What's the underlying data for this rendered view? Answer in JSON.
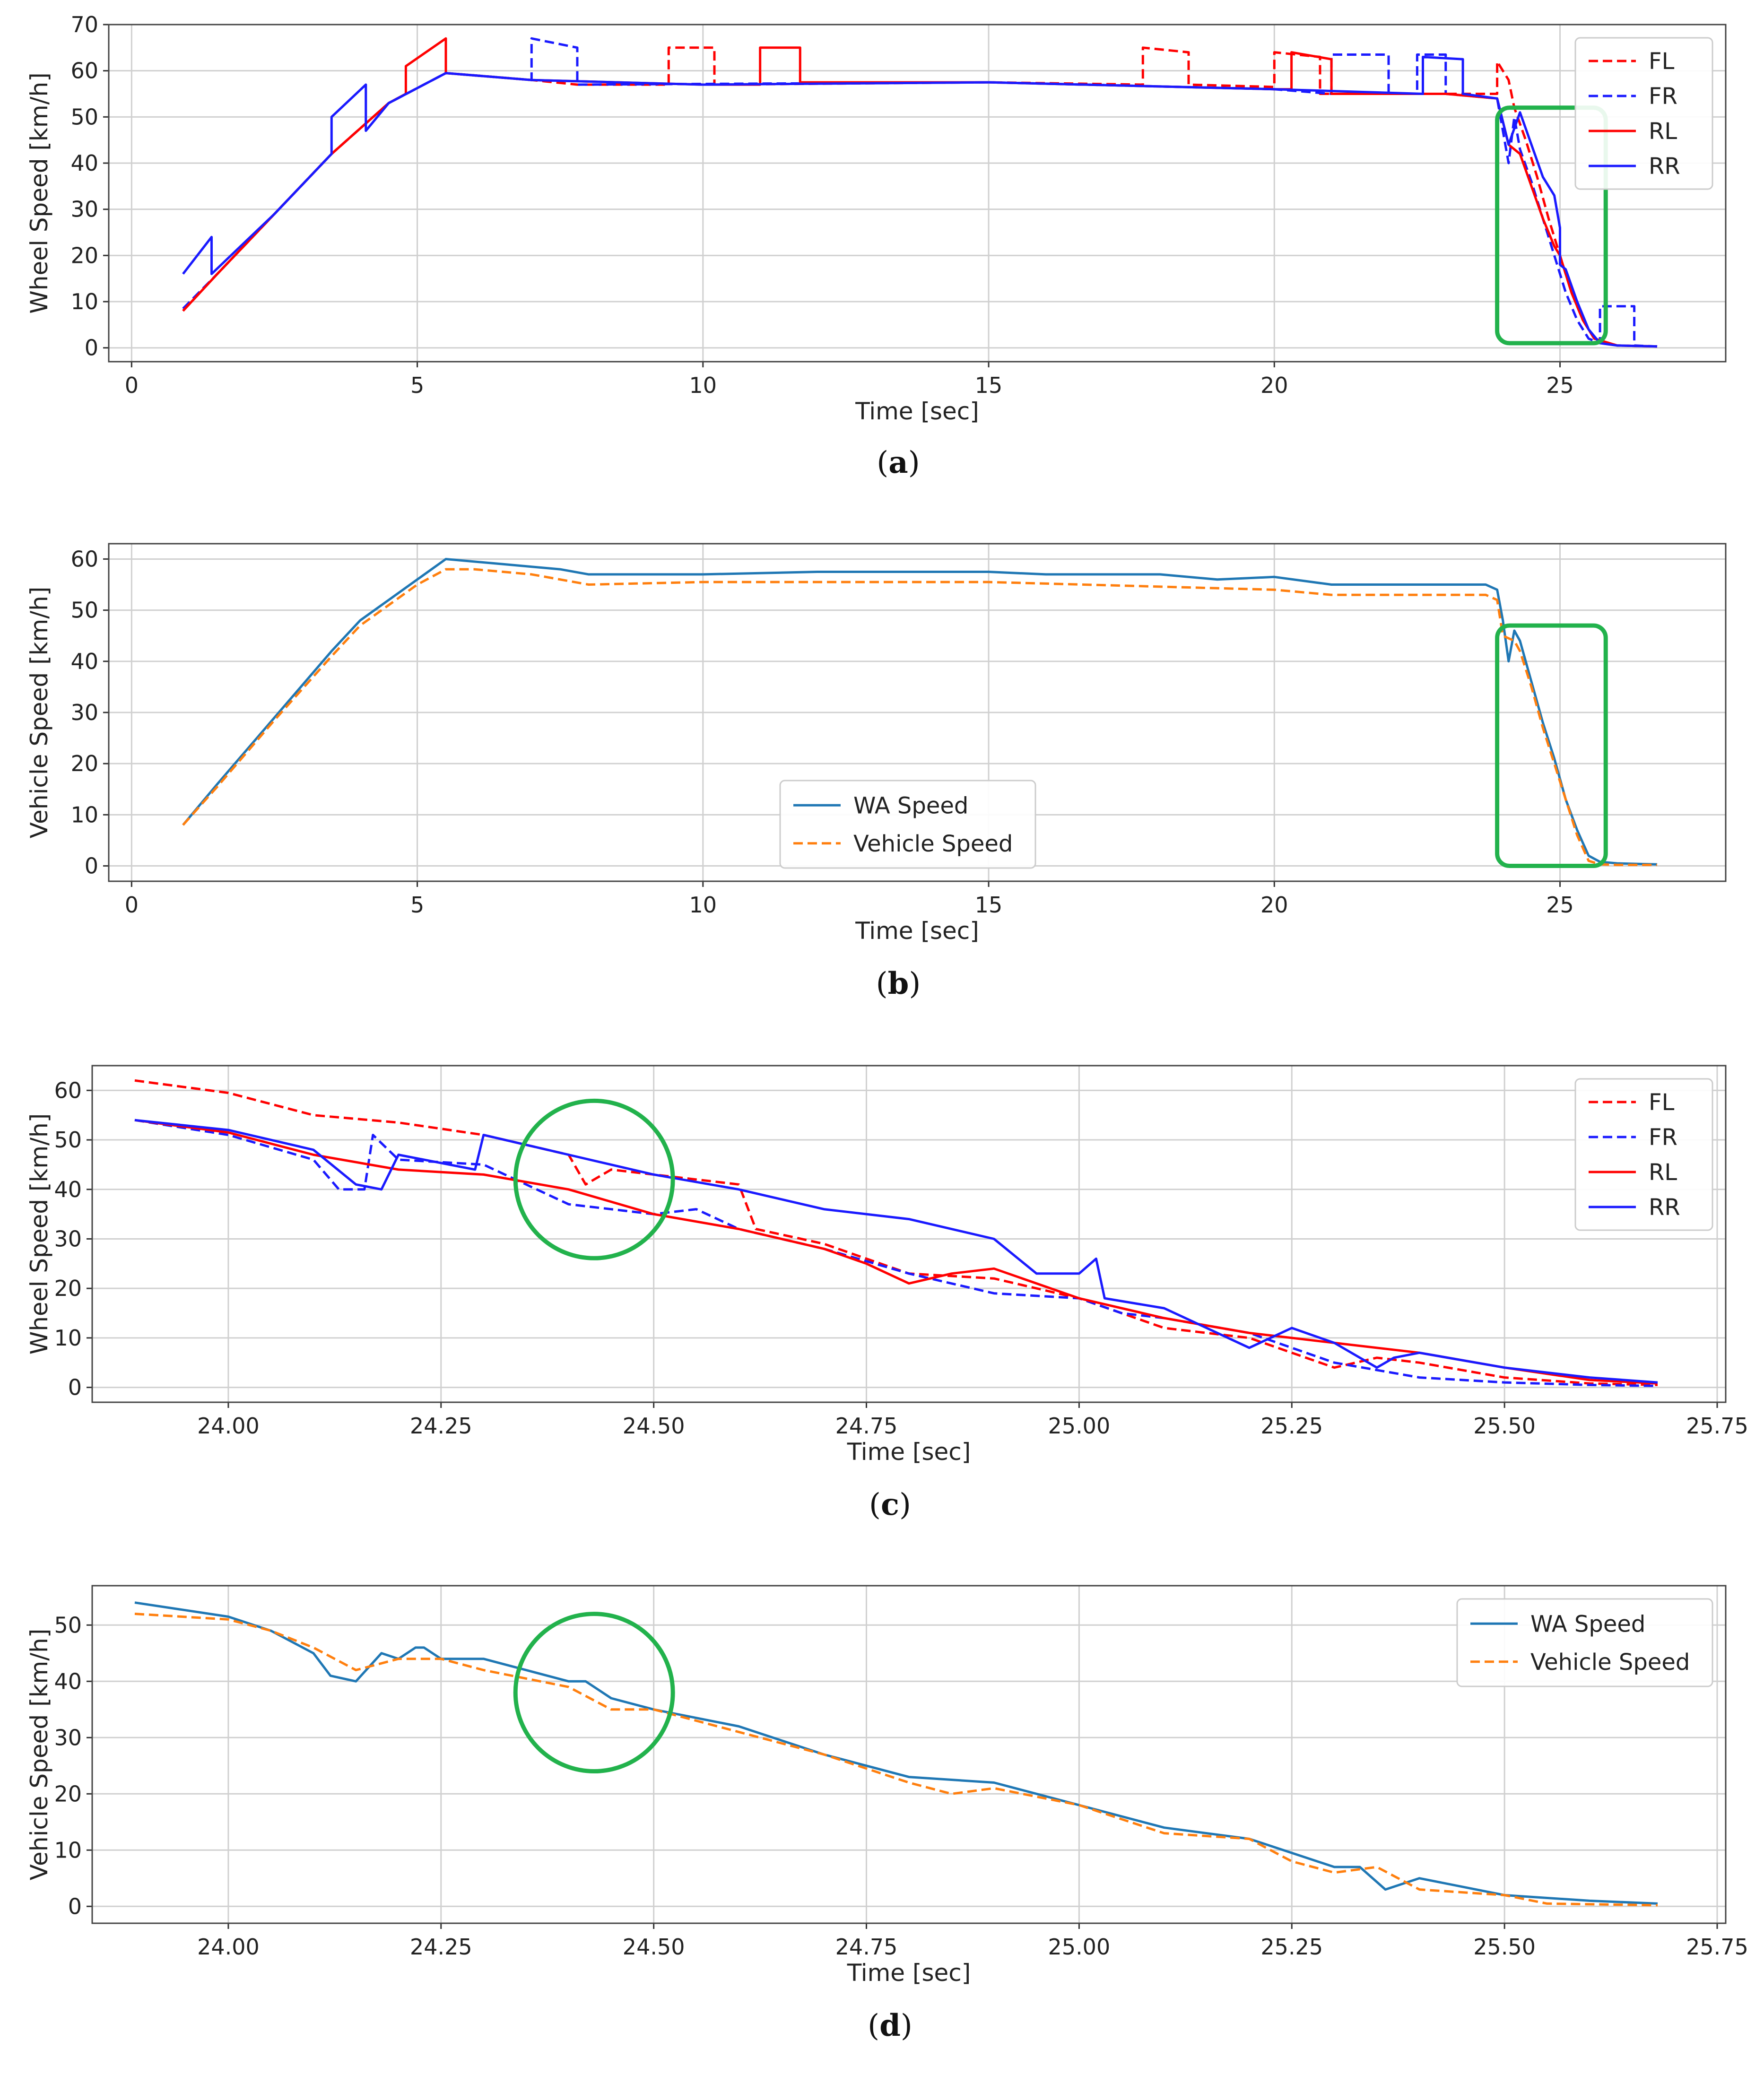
{
  "colors": {
    "FL": "#ff0000",
    "FR": "#1a1aff",
    "RL": "#ff0000",
    "RR": "#1a1aff",
    "WA": "#1f77b4",
    "Vehicle": "#ff7f0e",
    "highlight": "#22b24c",
    "grid": "#d0d0d0"
  },
  "chart_data": [
    {
      "type": "line",
      "caption": "a",
      "xlabel": "Time [sec]",
      "ylabel": "Wheel Speed [km/h]",
      "xlim": [
        -0.4,
        27.9
      ],
      "ylim": [
        -3,
        70
      ],
      "xticks": [
        0,
        5,
        10,
        15,
        20,
        25
      ],
      "xtick_labels": [
        "0",
        "5",
        "10",
        "15",
        "20",
        "25"
      ],
      "yticks": [
        0,
        10,
        20,
        30,
        40,
        50,
        60,
        70
      ],
      "ytick_labels": [
        "0",
        "10",
        "20",
        "30",
        "40",
        "50",
        "60",
        "70"
      ],
      "legend": "top-right",
      "highlight": {
        "shape": "rect",
        "x": [
          23.9,
          25.8
        ],
        "y": [
          1,
          52
        ]
      },
      "series": [
        {
          "name": "FL",
          "color_key": "FL",
          "dash": true,
          "x": [
            0.9,
            1.5,
            2.5,
            3.5,
            4.5,
            5.5,
            7.0,
            7.0,
            7.8,
            7.8,
            9.4,
            9.4,
            10.2,
            10.2,
            15.0,
            17.7,
            17.7,
            18.5,
            18.5,
            20.0,
            20.0,
            20.8,
            20.8,
            23.0,
            23.9,
            23.9,
            24.1,
            24.2,
            24.4,
            24.6,
            24.8,
            25.0,
            25.2,
            25.4,
            25.6,
            26.0,
            26.7
          ],
          "y": [
            8,
            16,
            29,
            42,
            53,
            59.5,
            58,
            58,
            57,
            57,
            57,
            65,
            65,
            57,
            57.5,
            57,
            65,
            64,
            57,
            56.5,
            64,
            63,
            55,
            55,
            55,
            62,
            58,
            52,
            45,
            37,
            28,
            20,
            12,
            6,
            2,
            0.5,
            0.3
          ]
        },
        {
          "name": "FR",
          "color_key": "FR",
          "dash": true,
          "x": [
            0.9,
            1.5,
            2.5,
            3.5,
            4.5,
            5.5,
            7.0,
            7.0,
            7.8,
            7.8,
            15.0,
            20.0,
            21.0,
            21.0,
            22.0,
            22.0,
            22.5,
            22.5,
            23.0,
            23.0,
            23.9,
            24.1,
            24.2,
            24.3,
            24.5,
            24.7,
            24.9,
            25.1,
            25.3,
            25.5,
            25.7,
            25.7,
            26.3,
            26.3,
            26.7
          ],
          "y": [
            8.5,
            16,
            29,
            42,
            53,
            59.5,
            58,
            67,
            65,
            57,
            57.5,
            56,
            55,
            63.5,
            63.5,
            55,
            55,
            63.5,
            63.5,
            55,
            54,
            40,
            50,
            43,
            36,
            28,
            20,
            12,
            6,
            2,
            1,
            9,
            9,
            0.5,
            0.3
          ]
        },
        {
          "name": "RL",
          "color_key": "RL",
          "dash": false,
          "x": [
            0.9,
            1.5,
            2.5,
            3.5,
            4.5,
            4.8,
            4.8,
            5.5,
            5.5,
            7.0,
            10.0,
            11.0,
            11.0,
            11.7,
            11.7,
            15.0,
            20.0,
            20.3,
            20.3,
            21.0,
            21.0,
            23.0,
            23.9,
            24.1,
            24.3,
            24.5,
            24.7,
            24.9,
            25.0,
            25.2,
            25.4,
            25.6,
            26.0,
            26.7
          ],
          "y": [
            8,
            16,
            29,
            42,
            53,
            55,
            61,
            67,
            59.5,
            58,
            57,
            57,
            65,
            65,
            57.5,
            57.5,
            56,
            56,
            64,
            62.5,
            55,
            55,
            54,
            44,
            42,
            35,
            28,
            22,
            20,
            12,
            6,
            2,
            0.5,
            0.3
          ]
        },
        {
          "name": "RR",
          "color_key": "RR",
          "dash": false,
          "x": [
            0.9,
            1.4,
            1.4,
            2.5,
            3.5,
            3.5,
            4.1,
            4.1,
            4.5,
            5.5,
            7.0,
            10.0,
            15.0,
            20.0,
            22.6,
            22.6,
            23.3,
            23.3,
            23.9,
            24.1,
            24.3,
            24.5,
            24.7,
            24.9,
            25.0,
            25.0,
            25.1,
            25.3,
            25.5,
            25.7,
            26.0,
            26.7
          ],
          "y": [
            16,
            24,
            16,
            29,
            42,
            50,
            57,
            47,
            53,
            59.5,
            58,
            57,
            57.5,
            56,
            55,
            63,
            62.5,
            55,
            54,
            44,
            51,
            44,
            37,
            33,
            26,
            18,
            17,
            10,
            4,
            1,
            0.5,
            0.3
          ]
        }
      ]
    },
    {
      "type": "line",
      "caption": "b",
      "xlabel": "Time [sec]",
      "ylabel": "Vehicle Speed [km/h]",
      "xlim": [
        -0.4,
        27.9
      ],
      "ylim": [
        -3,
        63
      ],
      "xticks": [
        0,
        5,
        10,
        15,
        20,
        25
      ],
      "xtick_labels": [
        "0",
        "5",
        "10",
        "15",
        "20",
        "25"
      ],
      "yticks": [
        0,
        10,
        20,
        30,
        40,
        50,
        60
      ],
      "ytick_labels": [
        "0",
        "10",
        "20",
        "30",
        "40",
        "50",
        "60"
      ],
      "legend": "bottom-center",
      "highlight": {
        "shape": "rect",
        "x": [
          23.9,
          25.8
        ],
        "y": [
          0,
          47
        ]
      },
      "series": [
        {
          "name": "WA Speed",
          "color_key": "WA",
          "dash": false,
          "x": [
            0.9,
            1.5,
            2.5,
            3.5,
            4.0,
            4.5,
            5.0,
            5.5,
            6.5,
            7.5,
            8.0,
            10.0,
            12.0,
            15.0,
            16.0,
            18.0,
            19.0,
            20.0,
            21.0,
            23.0,
            23.7,
            23.9,
            24.0,
            24.1,
            24.2,
            24.3,
            24.5,
            24.7,
            24.9,
            25.1,
            25.3,
            25.5,
            25.7,
            26.0,
            26.7
          ],
          "y": [
            8,
            16,
            29,
            42,
            48,
            52,
            56,
            60,
            59,
            58,
            57,
            57,
            57.5,
            57.5,
            57,
            57,
            56,
            56.5,
            55,
            55,
            55,
            54,
            48,
            40,
            46,
            44,
            36,
            28,
            21,
            13,
            7,
            2,
            0.8,
            0.5,
            0.3
          ]
        },
        {
          "name": "Vehicle Speed",
          "color_key": "Vehicle",
          "dash": true,
          "x": [
            0.9,
            1.5,
            2.5,
            3.5,
            4.0,
            4.5,
            5.0,
            5.5,
            6.0,
            7.0,
            8.0,
            10.0,
            15.0,
            20.0,
            21.0,
            22.0,
            23.0,
            23.7,
            23.9,
            24.0,
            24.2,
            24.3,
            24.5,
            24.7,
            24.9,
            25.1,
            25.3,
            25.5,
            25.7,
            26.0,
            26.7
          ],
          "y": [
            8,
            15.5,
            28.5,
            41,
            47,
            51,
            55,
            58,
            58,
            57,
            55,
            55.5,
            55.5,
            54,
            53,
            53,
            53,
            53,
            52,
            45,
            44,
            42,
            35,
            27,
            20,
            13,
            6,
            1,
            0.3,
            0.2,
            0.2
          ]
        }
      ]
    },
    {
      "type": "line",
      "caption": "c",
      "xlabel": "Time [sec]",
      "ylabel": "Wheel Speed [km/h]",
      "xlim": [
        23.84,
        25.76
      ],
      "ylim": [
        -3,
        65
      ],
      "xticks": [
        24.0,
        24.25,
        24.5,
        24.75,
        25.0,
        25.25,
        25.5,
        25.75
      ],
      "xtick_labels": [
        "24.00",
        "24.25",
        "24.50",
        "24.75",
        "25.00",
        "25.25",
        "25.50",
        "25.75"
      ],
      "yticks": [
        0,
        10,
        20,
        30,
        40,
        50,
        60
      ],
      "ytick_labels": [
        "0",
        "10",
        "20",
        "30",
        "40",
        "50",
        "60"
      ],
      "legend": "top-right",
      "highlight": {
        "shape": "circle",
        "cx": 24.43,
        "cy": 42,
        "r": 0.05
      },
      "series": [
        {
          "name": "FL",
          "color_key": "FL",
          "dash": true,
          "x": [
            23.89,
            24.0,
            24.1,
            24.2,
            24.3,
            24.4,
            24.42,
            24.45,
            24.5,
            24.55,
            24.6,
            24.62,
            24.7,
            24.8,
            24.9,
            25.0,
            25.1,
            25.2,
            25.3,
            25.35,
            25.4,
            25.5,
            25.6,
            25.68
          ],
          "y": [
            62,
            59.5,
            55,
            53.5,
            51,
            47,
            41,
            44,
            43,
            42,
            41,
            32,
            29,
            23,
            22,
            18,
            12,
            10,
            4,
            6,
            5,
            2,
            0.8,
            0.5
          ]
        },
        {
          "name": "FR",
          "color_key": "FR",
          "dash": true,
          "x": [
            23.89,
            24.0,
            24.1,
            24.13,
            24.16,
            24.17,
            24.2,
            24.3,
            24.4,
            24.5,
            24.55,
            24.6,
            24.7,
            24.8,
            24.9,
            25.0,
            25.05,
            25.1,
            25.2,
            25.3,
            25.4,
            25.5,
            25.6,
            25.68
          ],
          "y": [
            54,
            51,
            46,
            40,
            40,
            51,
            46,
            45,
            37,
            35,
            36,
            32,
            28,
            23,
            19,
            18,
            15,
            14,
            11,
            5,
            2,
            1,
            0.5,
            0.3
          ]
        },
        {
          "name": "RL",
          "color_key": "RL",
          "dash": false,
          "x": [
            23.89,
            24.0,
            24.1,
            24.2,
            24.3,
            24.4,
            24.5,
            24.6,
            24.7,
            24.75,
            24.8,
            24.85,
            24.9,
            25.0,
            25.1,
            25.2,
            25.3,
            25.4,
            25.5,
            25.6,
            25.68
          ],
          "y": [
            54,
            51.5,
            47,
            44,
            43,
            40,
            35,
            32,
            28,
            25,
            21,
            23,
            24,
            18,
            14,
            11,
            9,
            7,
            4,
            1.5,
            0.8
          ]
        },
        {
          "name": "RR",
          "color_key": "RR",
          "dash": false,
          "x": [
            23.89,
            24.0,
            24.1,
            24.15,
            24.18,
            24.2,
            24.29,
            24.3,
            24.4,
            24.5,
            24.6,
            24.7,
            24.8,
            24.9,
            24.95,
            25.0,
            25.02,
            25.03,
            25.1,
            25.2,
            25.25,
            25.3,
            25.35,
            25.37,
            25.4,
            25.5,
            25.6,
            25.68
          ],
          "y": [
            54,
            52,
            48,
            41,
            40,
            47,
            44,
            51,
            47,
            43,
            40,
            36,
            34,
            30,
            23,
            23,
            26,
            18,
            16,
            8,
            12,
            9,
            4,
            6,
            7,
            4,
            2,
            1
          ]
        }
      ]
    },
    {
      "type": "line",
      "caption": "d",
      "xlabel": "Time [sec]",
      "ylabel": "Vehicle Speed [km/h]",
      "xlim": [
        23.84,
        25.76
      ],
      "ylim": [
        -3,
        57
      ],
      "xticks": [
        24.0,
        24.25,
        24.5,
        24.75,
        25.0,
        25.25,
        25.5,
        25.75
      ],
      "xtick_labels": [
        "24.00",
        "24.25",
        "24.50",
        "24.75",
        "25.00",
        "25.25",
        "25.50",
        "25.75"
      ],
      "yticks": [
        0,
        10,
        20,
        30,
        40,
        50
      ],
      "ytick_labels": [
        "0",
        "10",
        "20",
        "30",
        "40",
        "50"
      ],
      "legend": "top-right",
      "highlight": {
        "shape": "circle",
        "cx": 24.43,
        "cy": 38,
        "r": 0.05
      },
      "series": [
        {
          "name": "WA Speed",
          "color_key": "WA",
          "dash": false,
          "x": [
            23.89,
            24.0,
            24.05,
            24.1,
            24.12,
            24.15,
            24.18,
            24.2,
            24.22,
            24.23,
            24.25,
            24.3,
            24.4,
            24.42,
            24.45,
            24.5,
            24.6,
            24.7,
            24.8,
            24.9,
            25.0,
            25.1,
            25.2,
            25.3,
            25.33,
            25.36,
            25.4,
            25.5,
            25.6,
            25.68
          ],
          "y": [
            54,
            51.5,
            49,
            45,
            41,
            40,
            45,
            44,
            46,
            46,
            44,
            44,
            40,
            40,
            37,
            35,
            32,
            27,
            23,
            22,
            18,
            14,
            12,
            7,
            7,
            3,
            5,
            2,
            1,
            0.5
          ]
        },
        {
          "name": "Vehicle Speed",
          "color_key": "Vehicle",
          "dash": true,
          "x": [
            23.89,
            24.0,
            24.05,
            24.1,
            24.15,
            24.2,
            24.25,
            24.3,
            24.4,
            24.45,
            24.5,
            24.6,
            24.7,
            24.8,
            24.85,
            24.9,
            25.0,
            25.1,
            25.2,
            25.25,
            25.3,
            25.35,
            25.4,
            25.5,
            25.55,
            25.68
          ],
          "y": [
            52,
            51,
            49,
            46,
            42,
            44,
            44,
            42,
            39,
            35,
            35,
            31,
            27,
            22,
            20,
            21,
            18,
            13,
            12,
            8,
            6,
            7,
            3,
            2,
            0.5,
            0.2
          ]
        }
      ]
    }
  ]
}
